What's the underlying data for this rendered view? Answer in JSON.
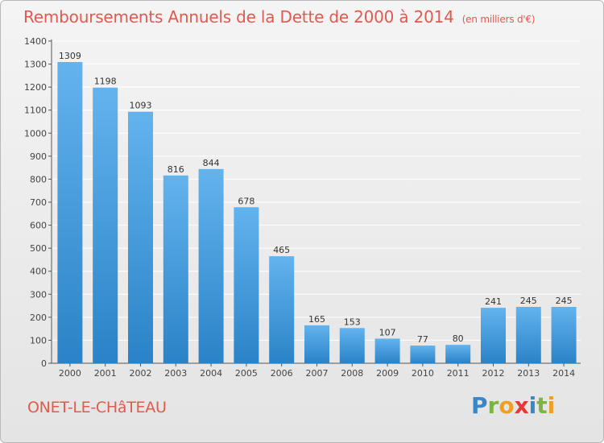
{
  "title": "Remboursements Annuels de la Dette de 2000 à 2014",
  "unit_note": "(en milliers d'€)",
  "commune": "ONET-LE-CHâTEAU",
  "logo": {
    "letters": [
      "P",
      "r",
      "o",
      "x",
      "i",
      "t",
      "i"
    ],
    "colors": [
      "#3a86c8",
      "#7cb342",
      "#f0a020",
      "#e53935",
      "#3a86c8",
      "#7cb342",
      "#f0a020"
    ]
  },
  "colors": {
    "bar_light": "#63b3ee",
    "bar_dark": "#2a83c7",
    "grid": "#ffffff",
    "title": "#e05a4e"
  },
  "chart_data": {
    "type": "bar",
    "categories": [
      "2000",
      "2001",
      "2002",
      "2003",
      "2004",
      "2005",
      "2006",
      "2007",
      "2008",
      "2009",
      "2010",
      "2011",
      "2012",
      "2013",
      "2014"
    ],
    "values": [
      1309,
      1198,
      1093,
      816,
      844,
      678,
      465,
      165,
      153,
      107,
      77,
      80,
      241,
      245,
      245
    ],
    "data_labels": [
      "1309",
      "1198",
      "1093",
      "816",
      "844",
      "678",
      "465",
      "165",
      "153",
      "107",
      "77",
      "80",
      "241",
      "245",
      "245"
    ],
    "yticks": [
      0,
      100,
      200,
      300,
      400,
      500,
      600,
      700,
      800,
      900,
      1000,
      1100,
      1200,
      1300,
      1400
    ],
    "ylim": [
      0,
      1400
    ],
    "grid": true,
    "xlabel": "",
    "ylabel": ""
  }
}
